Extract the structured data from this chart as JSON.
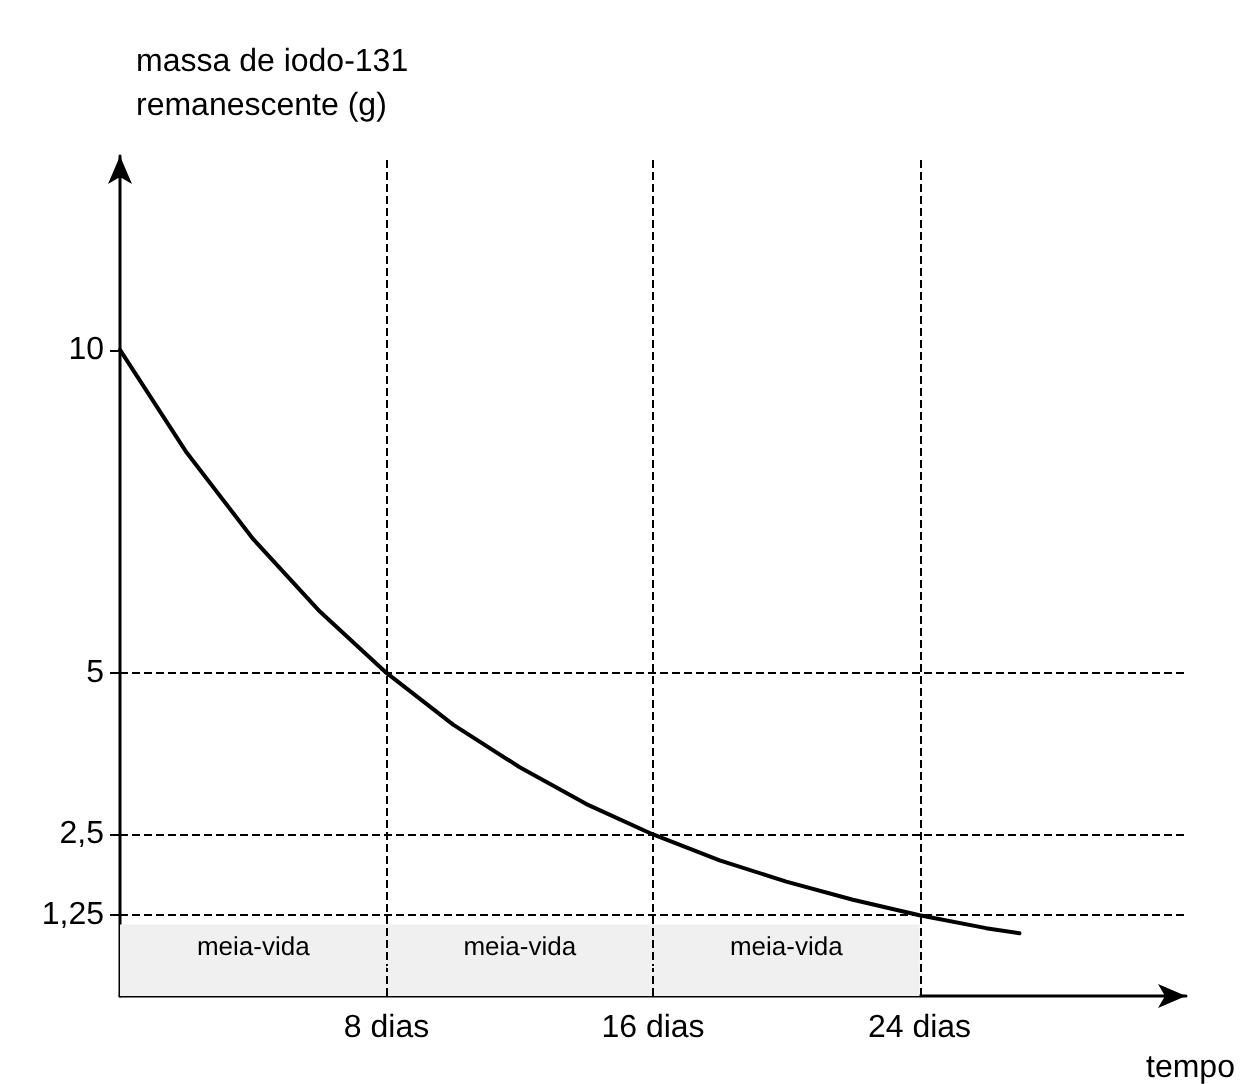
{
  "chart_data": {
    "type": "line",
    "xlabel": "tempo",
    "ylabel": "massa de iodo-131\nremanescente (g)",
    "x": [
      0,
      2,
      4,
      6,
      8,
      10,
      12,
      14,
      16,
      18,
      20,
      22,
      24,
      26,
      27
    ],
    "series": [
      {
        "color": "#000000",
        "values": [
          10,
          8.41,
          7.07,
          5.95,
          5,
          4.2,
          3.54,
          2.97,
          2.5,
          2.1,
          1.77,
          1.49,
          1.25,
          1.05,
          0.97
        ]
      }
    ],
    "xlim": [
      0,
      32
    ],
    "ylim": [
      0,
      13
    ],
    "xticks": [
      {
        "value": 8,
        "label": "8 dias"
      },
      {
        "value": 16,
        "label": "16 dias"
      },
      {
        "value": 24,
        "label": "24 dias"
      }
    ],
    "yticks": [
      {
        "value": 1.25,
        "label": "1,25"
      },
      {
        "value": 2.5,
        "label": "2,5"
      },
      5,
      10
    ],
    "ref_lines": [
      {
        "axis": "y",
        "value": 5,
        "line_style": "dashed"
      },
      {
        "axis": "y",
        "value": 2.5,
        "line_style": "dashed"
      },
      {
        "axis": "y",
        "value": 1.25,
        "line_style": "dashed"
      },
      {
        "axis": "x",
        "value": 8,
        "line_style": "dashed"
      },
      {
        "axis": "x",
        "value": 16,
        "line_style": "dashed"
      },
      {
        "axis": "x",
        "value": 24,
        "line_style": "dashed"
      }
    ],
    "bands": [
      {
        "axis": "x",
        "from": 0,
        "to": 8,
        "label": "meia-vida",
        "color": "#f0f0f0"
      },
      {
        "axis": "x",
        "from": 8,
        "to": 16,
        "label": "meia-vida",
        "color": "#f0f0f0"
      },
      {
        "axis": "x",
        "from": 16,
        "to": 24,
        "label": "meia-vida",
        "color": "#f0f0f0"
      }
    ],
    "grid": false,
    "marker": "none",
    "line_style": "solid"
  }
}
